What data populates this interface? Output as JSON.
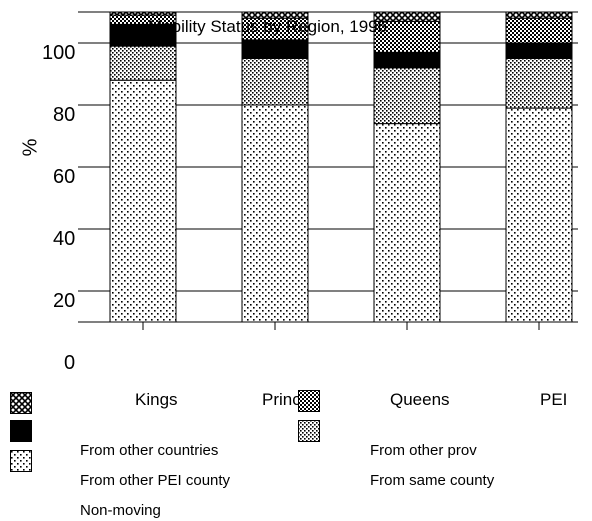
{
  "chart_data": {
    "type": "bar",
    "stacked": true,
    "title": "Mobility Status by Region, 1996",
    "ylabel": "%",
    "xlabel": "",
    "ylim": [
      0,
      110
    ],
    "yticks": [
      0,
      20,
      40,
      60,
      80,
      100
    ],
    "grid": true,
    "categories": [
      "Kings",
      "Prince",
      "Queens",
      "PEI"
    ],
    "series": [
      {
        "name": "Non-moving",
        "values": [
          78,
          70,
          64,
          69
        ],
        "pattern": "sparse-dots"
      },
      {
        "name": "From same county",
        "values": [
          11,
          15,
          18,
          16
        ],
        "pattern": "dense-dots"
      },
      {
        "name": "From other PEI county",
        "values": [
          7,
          6,
          5,
          5
        ],
        "pattern": "solid-black"
      },
      {
        "name": "From other prov",
        "values": [
          3,
          7,
          10,
          8
        ],
        "pattern": "checker"
      },
      {
        "name": "From other countries",
        "values": [
          1,
          2,
          3,
          2
        ],
        "pattern": "cross"
      }
    ],
    "legend_position": "bottom",
    "legend_items": [
      "From other countries",
      "From other prov",
      "From other PEI county",
      "From same county",
      "Non-moving"
    ]
  },
  "colors": {
    "fill": "#ffffff",
    "ink": "#000000"
  }
}
